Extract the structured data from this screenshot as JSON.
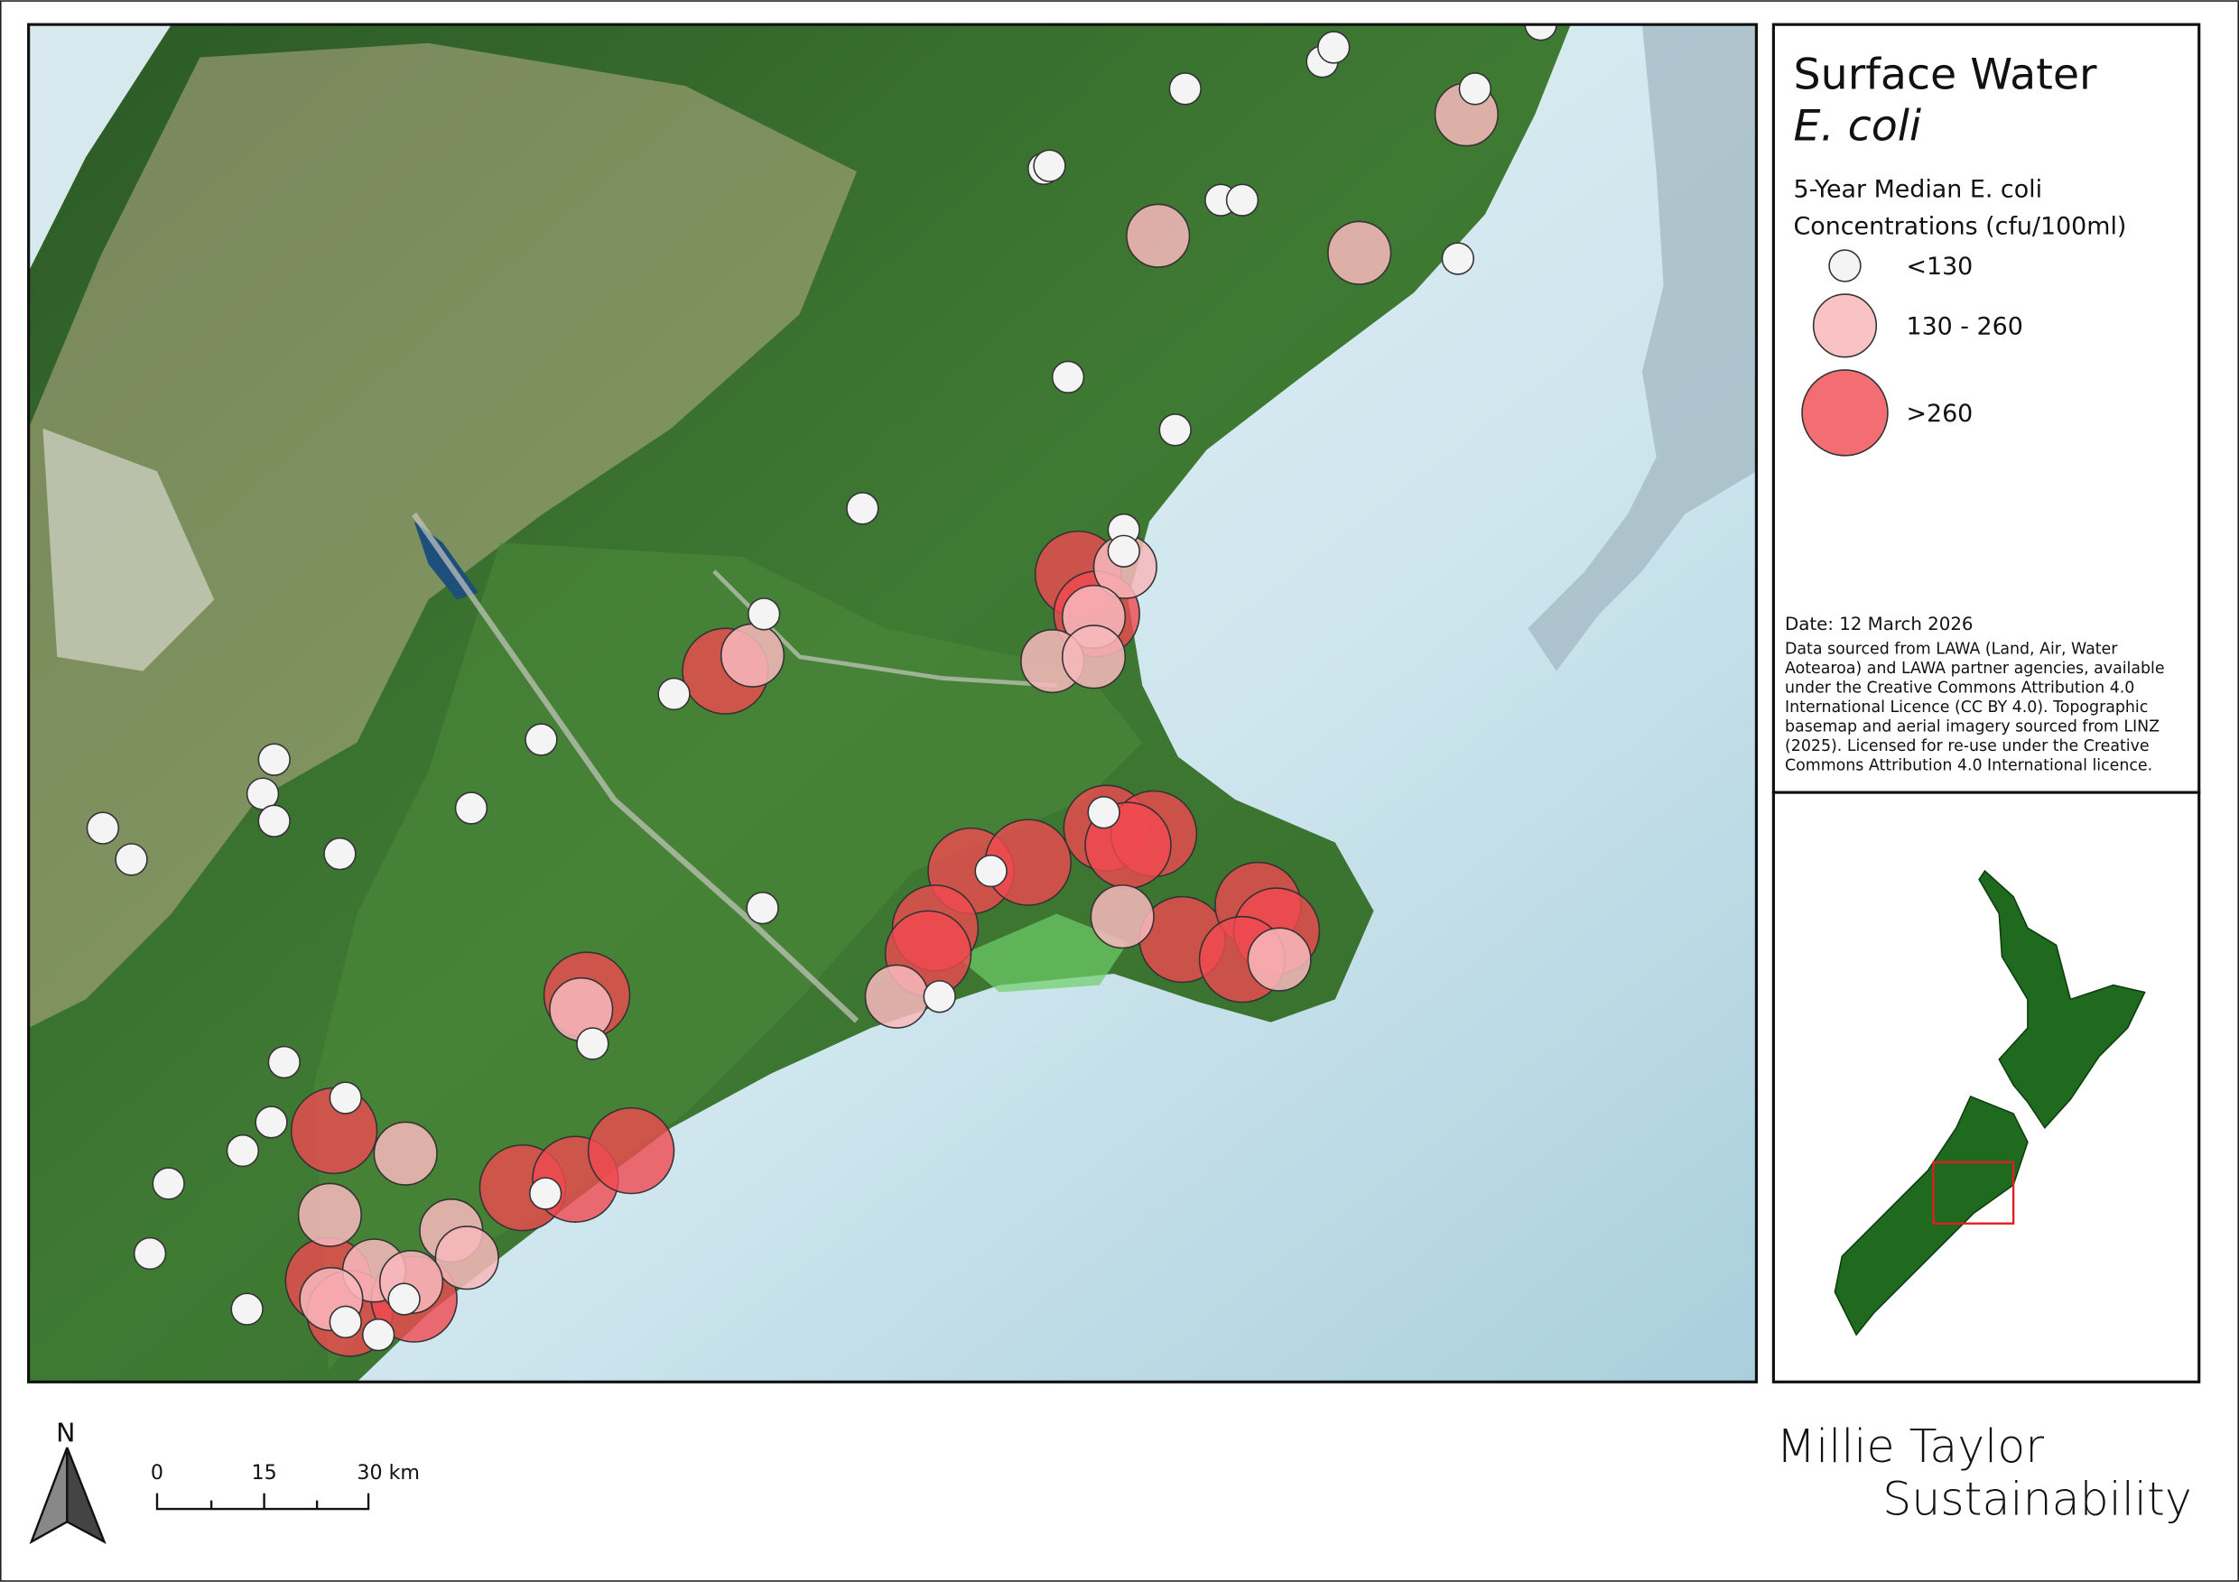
{
  "legend": {
    "title": [
      "Surface Water",
      "E. coli"
    ],
    "subtitle": [
      "5-Year Median E. coli",
      "Concentrations (cfu/100ml)"
    ],
    "items": [
      {
        "label": "<130",
        "color": "#f4f4f4"
      },
      {
        "label": "130 - 260",
        "color": "#f8b9bc"
      },
      {
        "label": ">260",
        "color": "#f04a50"
      }
    ]
  },
  "notes": {
    "date": "Date: 12 March 2026",
    "source": [
      "Data sourced from LAWA (Land, Air, Water",
      "Aotearoa) and LAWA partner agencies, available",
      "under the Creative Commons Attribution 4.0",
      "International Licence (CC BY 4.0). Topographic",
      "basemap and aerial imagery sourced from LINZ",
      "(2025). Licensed for re-use under the Creative",
      "Commons Attribution 4.0 International licence."
    ]
  },
  "scale_bar": {
    "labels": [
      "0",
      "15",
      "30 km"
    ]
  },
  "north_arrow": "N",
  "branding": [
    "Millie Taylor",
    "Sustainability"
  ]
}
